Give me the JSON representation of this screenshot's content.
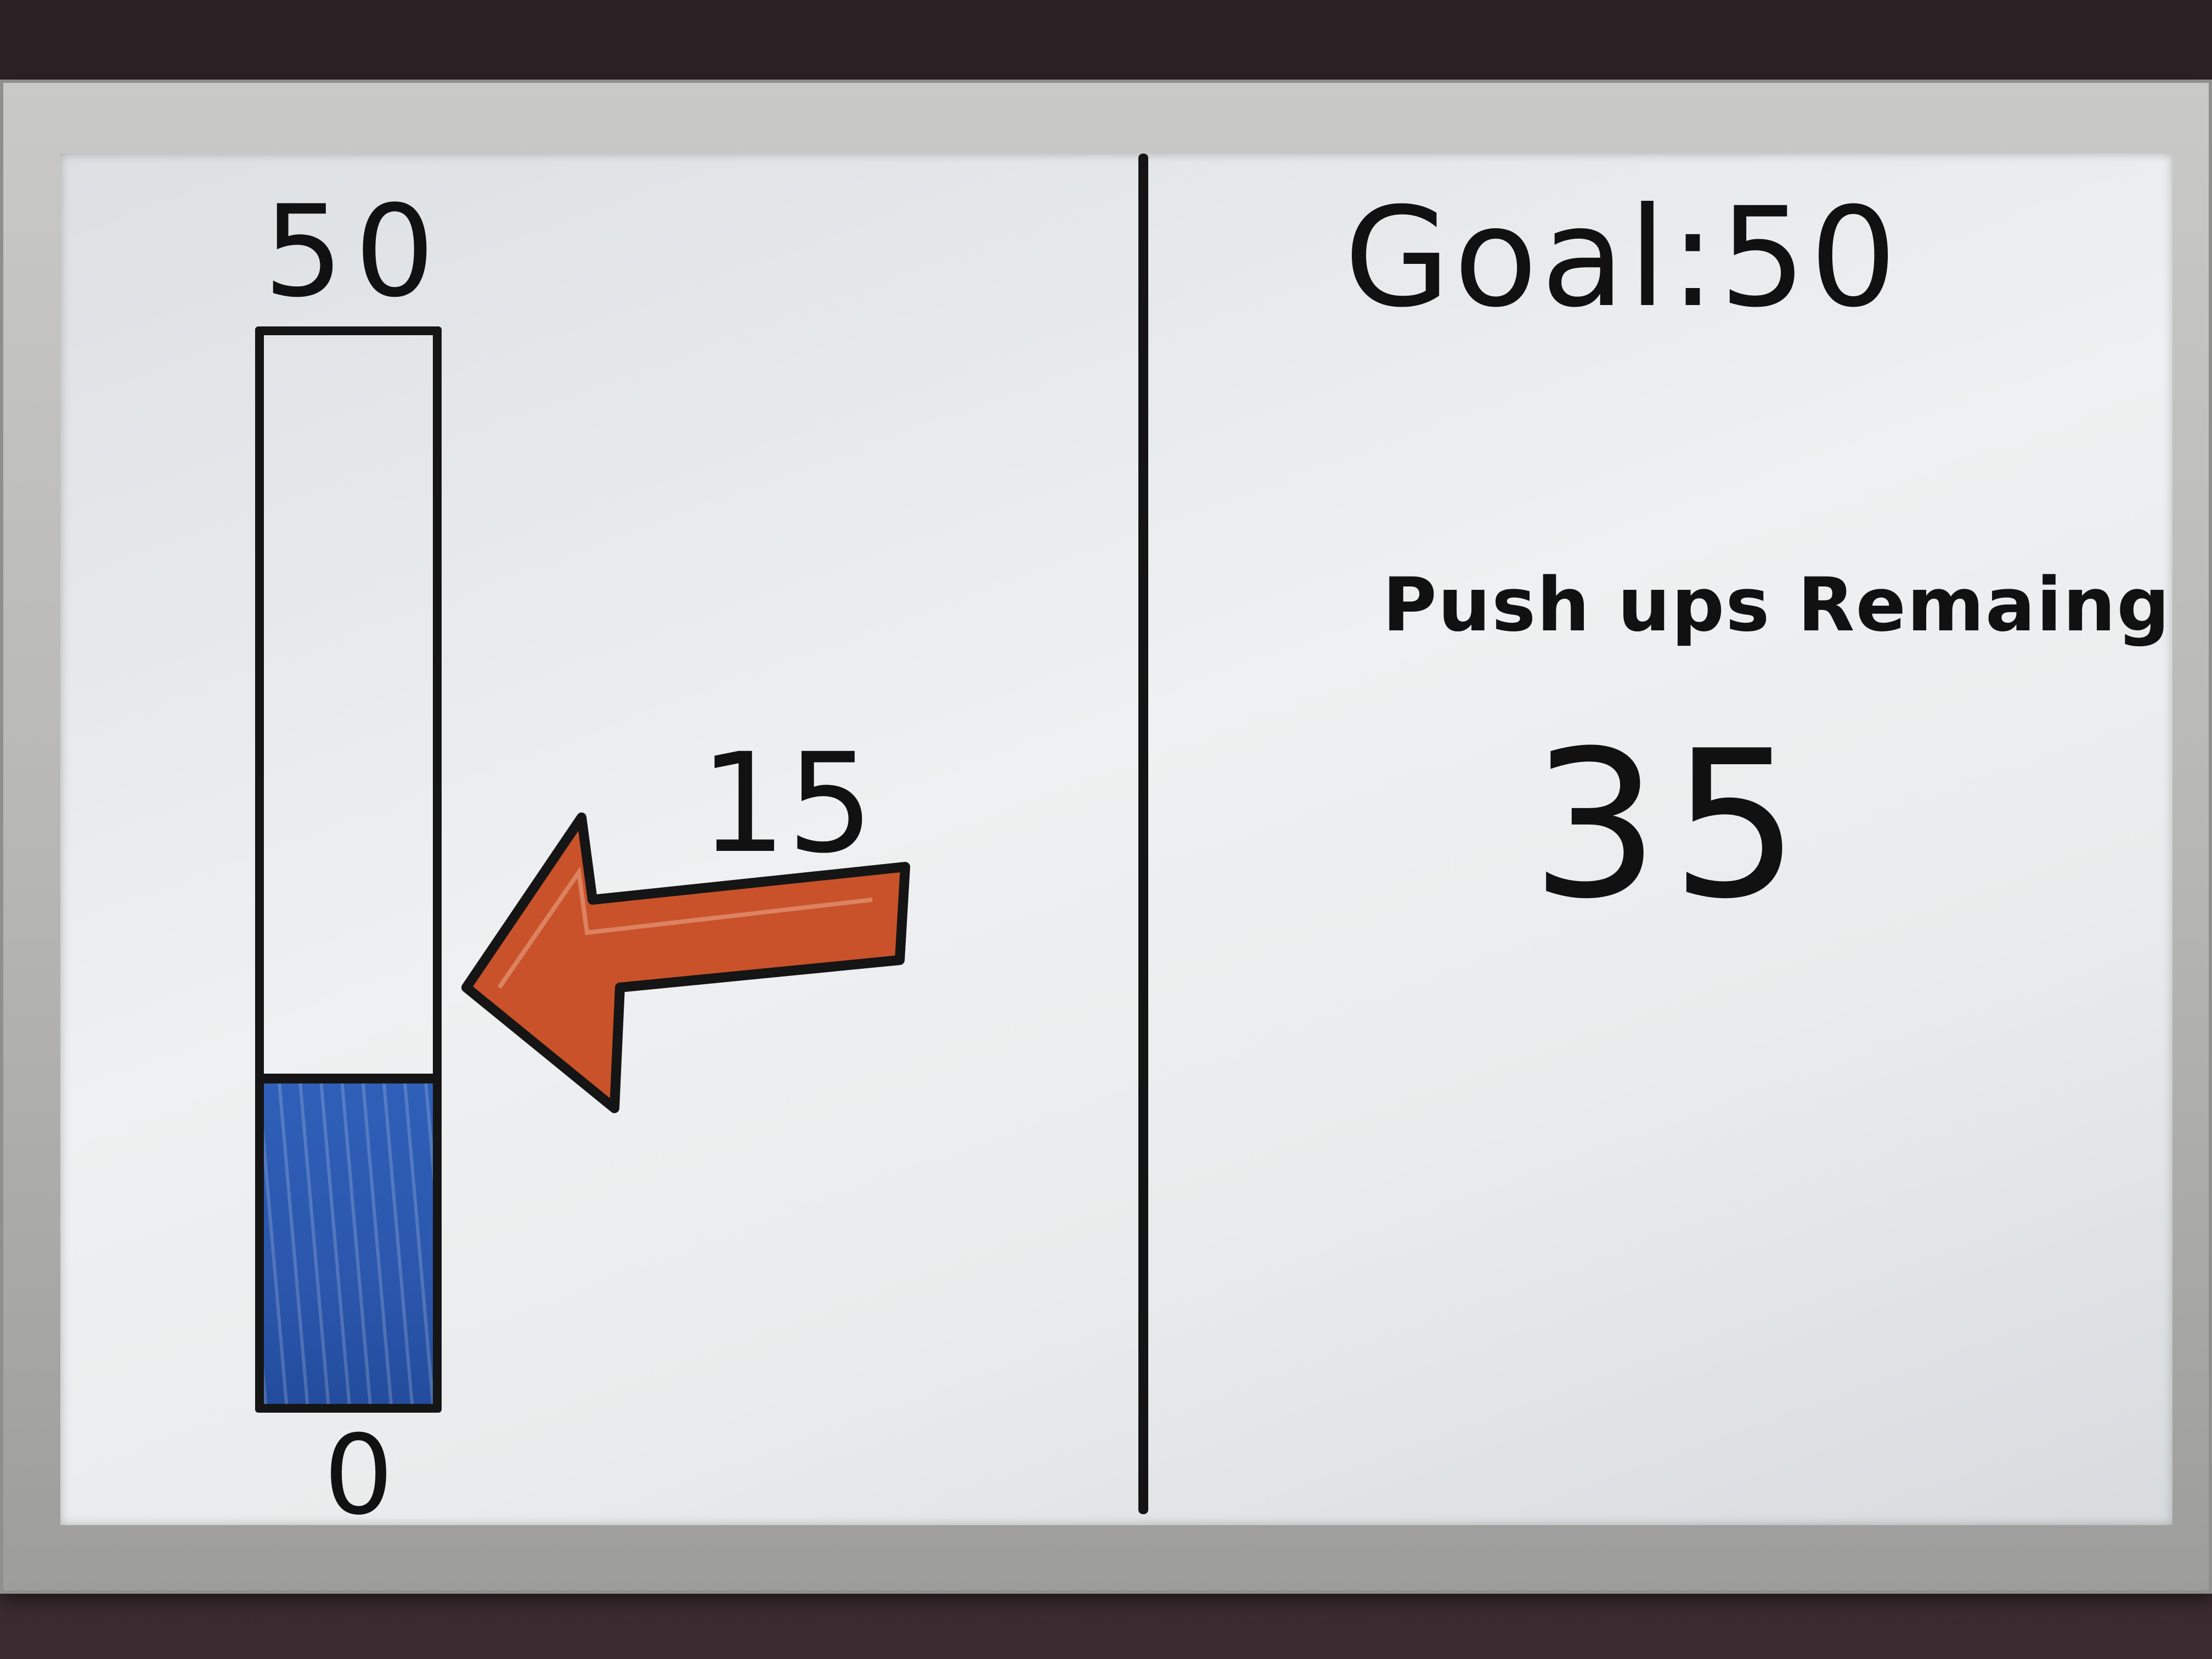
{
  "whiteboard": {
    "gauge": {
      "max_label": "50",
      "min_label": "0",
      "max_value": 50,
      "current_value": 15,
      "fill_color": "#2b57ad"
    },
    "current_label": "15",
    "goal_text": "Goal:50",
    "remaining_label": "Push ups Remaing",
    "remaining_value": "35",
    "arrow_color": "#c9522a"
  }
}
